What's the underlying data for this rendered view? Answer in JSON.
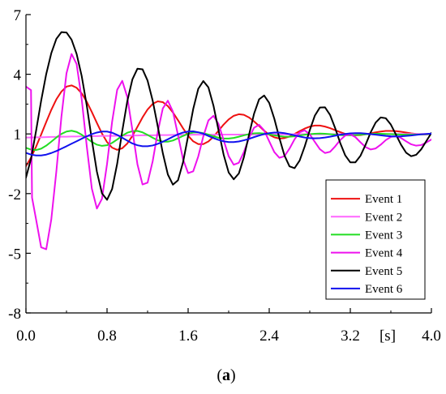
{
  "chart_data": {
    "type": "line",
    "title": "",
    "xlabel": "[s]",
    "ylabel": "",
    "xlim": [
      0,
      4.0
    ],
    "ylim": [
      -8,
      7
    ],
    "x_ticks": [
      "0.0",
      "0.8",
      "1.6",
      "2.4",
      "3.2",
      "4.0"
    ],
    "x_tick_values": [
      0,
      0.8,
      1.6,
      2.4,
      3.2,
      4.0
    ],
    "y_ticks": [
      "7",
      "4",
      "1",
      "-2",
      "-5",
      "-8"
    ],
    "y_tick_values": [
      7,
      4,
      1,
      -2,
      -5,
      -8
    ],
    "grid": false,
    "legend_position": "lower-right",
    "series": [
      {
        "name": "Event 1",
        "color": "#ee1111",
        "x": [
          0,
          0.05,
          0.1,
          0.15,
          0.2,
          0.25,
          0.3,
          0.35,
          0.4,
          0.45,
          0.5,
          0.55,
          0.6,
          0.65,
          0.7,
          0.75,
          0.8,
          0.85,
          0.9,
          0.95,
          1.0,
          1.05,
          1.1,
          1.15,
          1.2,
          1.25,
          1.3,
          1.35,
          1.4,
          1.45,
          1.5,
          1.55,
          1.6,
          1.65,
          1.7,
          1.75,
          1.8,
          1.85,
          1.9,
          1.95,
          2.0,
          2.05,
          2.1,
          2.15,
          2.2,
          2.25,
          2.3,
          2.35,
          2.4,
          2.45,
          2.5,
          2.55,
          2.6,
          2.65,
          2.7,
          2.75,
          2.8,
          2.85,
          2.9,
          2.95,
          3.0,
          3.05,
          3.1,
          3.15,
          3.2,
          3.25,
          3.3,
          3.35,
          3.4,
          3.45,
          3.5,
          3.55,
          3.6,
          3.65,
          3.7,
          3.75,
          3.8,
          3.85,
          3.9,
          3.95,
          4.0
        ],
        "y": [
          -0.62,
          -0.19,
          0.36,
          0.97,
          1.6,
          2.21,
          2.74,
          3.13,
          3.38,
          3.44,
          3.32,
          3.04,
          2.62,
          2.1,
          1.55,
          1.02,
          0.59,
          0.31,
          0.2,
          0.28,
          0.52,
          0.9,
          1.36,
          1.83,
          2.23,
          2.51,
          2.64,
          2.6,
          2.4,
          2.08,
          1.69,
          1.28,
          0.91,
          0.63,
          0.49,
          0.49,
          0.62,
          0.86,
          1.16,
          1.47,
          1.73,
          1.91,
          1.99,
          1.96,
          1.83,
          1.63,
          1.4,
          1.16,
          0.96,
          0.83,
          0.77,
          0.79,
          0.87,
          1.0,
          1.14,
          1.27,
          1.37,
          1.42,
          1.42,
          1.37,
          1.29,
          1.19,
          1.09,
          1.0,
          0.95,
          0.93,
          0.94,
          0.98,
          1.03,
          1.08,
          1.12,
          1.15,
          1.15,
          1.14,
          1.11,
          1.07,
          1.03,
          1.0,
          0.98,
          0.98,
          0.99
        ]
      },
      {
        "name": "Event 2",
        "color": "#ff66ff",
        "x": [
          0,
          0.05,
          0.1,
          0.15,
          0.2,
          0.25,
          0.3,
          0.35,
          0.4,
          0.45,
          0.5,
          0.55,
          0.6,
          0.65,
          0.7,
          0.75,
          0.8,
          0.85,
          0.9,
          0.95,
          1.0,
          1.05,
          1.1,
          1.15,
          1.2,
          1.25,
          1.3,
          1.35,
          1.4,
          1.45,
          1.5,
          1.55,
          1.6,
          1.65,
          1.7,
          1.75,
          1.8,
          1.85,
          1.9,
          1.95,
          2.0,
          2.05,
          2.1,
          2.15,
          2.2,
          2.25,
          2.3,
          2.35,
          2.4,
          2.45,
          2.5,
          2.55,
          2.6,
          2.65,
          2.7,
          2.75,
          2.8,
          2.85,
          2.9,
          2.95,
          3.0,
          3.05,
          3.1,
          3.15,
          3.2,
          3.25,
          3.3,
          3.35,
          3.4,
          3.45,
          3.5,
          3.55,
          3.6,
          3.65,
          3.7,
          3.75,
          3.8,
          3.85,
          3.9,
          3.95,
          4.0
        ],
        "y": [
          0.82,
          0.82,
          0.83,
          0.83,
          0.84,
          0.85,
          0.85,
          0.86,
          0.86,
          0.87,
          0.87,
          0.88,
          0.88,
          0.89,
          0.89,
          0.9,
          0.9,
          0.9,
          0.91,
          0.91,
          0.92,
          0.92,
          0.92,
          0.93,
          0.93,
          0.93,
          0.94,
          0.94,
          0.94,
          0.95,
          0.95,
          0.95,
          0.95,
          0.96,
          0.96,
          0.96,
          0.96,
          0.96,
          0.97,
          0.97,
          0.97,
          0.97,
          0.97,
          0.97,
          0.97,
          0.98,
          0.98,
          0.98,
          0.98,
          0.98,
          0.98,
          0.98,
          0.98,
          0.99,
          0.99,
          0.99,
          0.99,
          0.99,
          0.99,
          0.99,
          0.99,
          0.99,
          0.99,
          0.99,
          0.99,
          0.99,
          0.99,
          0.99,
          0.99,
          0.99,
          0.99,
          0.99,
          1.0,
          1.0,
          1.0,
          1.0,
          1.0,
          1.0,
          1.0,
          1.0,
          1.0
        ]
      },
      {
        "name": "Event 3",
        "color": "#22dd22",
        "x": [
          0,
          0.05,
          0.1,
          0.15,
          0.2,
          0.25,
          0.3,
          0.35,
          0.4,
          0.45,
          0.5,
          0.55,
          0.6,
          0.65,
          0.7,
          0.75,
          0.8,
          0.85,
          0.9,
          0.95,
          1.0,
          1.05,
          1.1,
          1.15,
          1.2,
          1.25,
          1.3,
          1.35,
          1.4,
          1.45,
          1.5,
          1.55,
          1.6,
          1.65,
          1.7,
          1.75,
          1.8,
          1.85,
          1.9,
          1.95,
          2.0,
          2.05,
          2.1,
          2.15,
          2.2,
          2.25,
          2.3,
          2.35,
          2.4,
          2.45,
          2.5,
          2.55,
          2.6,
          2.65,
          2.7,
          2.75,
          2.8,
          2.85,
          2.9,
          2.95,
          3.0,
          3.05,
          3.1,
          3.15,
          3.2,
          3.25,
          3.3,
          3.35,
          3.4,
          3.45,
          3.5,
          3.55,
          3.6,
          3.65,
          3.7,
          3.75,
          3.8,
          3.85,
          3.9,
          3.95,
          4.0
        ],
        "y": [
          0.3,
          0.21,
          0.19,
          0.26,
          0.41,
          0.61,
          0.82,
          1.0,
          1.12,
          1.16,
          1.1,
          0.96,
          0.78,
          0.6,
          0.46,
          0.4,
          0.43,
          0.55,
          0.72,
          0.91,
          1.06,
          1.14,
          1.15,
          1.08,
          0.95,
          0.81,
          0.68,
          0.61,
          0.61,
          0.67,
          0.78,
          0.9,
          1.01,
          1.07,
          1.08,
          1.04,
          0.97,
          0.88,
          0.81,
          0.77,
          0.77,
          0.8,
          0.86,
          0.93,
          0.99,
          1.03,
          1.04,
          1.02,
          0.98,
          0.93,
          0.89,
          0.86,
          0.86,
          0.88,
          0.92,
          0.96,
          0.99,
          1.01,
          1.02,
          1.01,
          0.99,
          0.96,
          0.94,
          0.93,
          0.93,
          0.94,
          0.96,
          0.98,
          1.0,
          1.01,
          1.01,
          1.0,
          0.99,
          0.98,
          0.97,
          0.96,
          0.96,
          0.97,
          0.98,
          0.99,
          1.0
        ]
      },
      {
        "name": "Event 4",
        "color": "#ee11ee",
        "x": [
          0,
          0.05,
          0.06,
          0.1,
          0.15,
          0.2,
          0.25,
          0.3,
          0.35,
          0.4,
          0.45,
          0.5,
          0.55,
          0.6,
          0.65,
          0.7,
          0.75,
          0.8,
          0.85,
          0.9,
          0.95,
          1.0,
          1.05,
          1.1,
          1.15,
          1.2,
          1.25,
          1.3,
          1.35,
          1.4,
          1.45,
          1.5,
          1.55,
          1.6,
          1.65,
          1.7,
          1.75,
          1.8,
          1.85,
          1.9,
          1.95,
          2.0,
          2.05,
          2.1,
          2.15,
          2.2,
          2.25,
          2.3,
          2.35,
          2.4,
          2.45,
          2.5,
          2.55,
          2.6,
          2.65,
          2.7,
          2.75,
          2.8,
          2.85,
          2.9,
          2.95,
          3.0,
          3.05,
          3.1,
          3.15,
          3.2,
          3.25,
          3.3,
          3.35,
          3.4,
          3.45,
          3.5,
          3.55,
          3.6,
          3.65,
          3.7,
          3.75,
          3.8,
          3.85,
          3.9,
          3.95,
          4.0
        ],
        "y": [
          3.38,
          3.2,
          -2.2,
          -3.3,
          -4.7,
          -4.8,
          -3.3,
          -0.88,
          1.87,
          4.05,
          5.02,
          4.51,
          2.75,
          0.38,
          -1.75,
          -2.75,
          -2.26,
          -0.51,
          1.61,
          3.22,
          3.67,
          2.85,
          1.2,
          -0.53,
          -1.54,
          -1.45,
          -0.38,
          1.09,
          2.28,
          2.67,
          2.12,
          0.94,
          -0.28,
          -0.97,
          -0.88,
          -0.13,
          0.88,
          1.68,
          1.91,
          1.5,
          0.69,
          -0.12,
          -0.55,
          -0.45,
          0.09,
          0.79,
          1.31,
          1.46,
          1.18,
          0.63,
          0.09,
          -0.2,
          -0.12,
          0.26,
          0.73,
          1.08,
          1.18,
          0.98,
          0.6,
          0.23,
          0.04,
          0.1,
          0.37,
          0.69,
          0.92,
          0.98,
          0.84,
          0.58,
          0.34,
          0.22,
          0.27,
          0.46,
          0.69,
          0.85,
          0.89,
          0.8,
          0.63,
          0.48,
          0.41,
          0.44,
          0.57,
          0.72
        ]
      },
      {
        "name": "Event 5",
        "color": "#000000",
        "x": [
          0,
          0.05,
          0.1,
          0.15,
          0.2,
          0.25,
          0.3,
          0.35,
          0.4,
          0.45,
          0.5,
          0.55,
          0.6,
          0.65,
          0.7,
          0.75,
          0.8,
          0.85,
          0.9,
          0.95,
          1.0,
          1.05,
          1.1,
          1.15,
          1.2,
          1.25,
          1.3,
          1.35,
          1.4,
          1.45,
          1.5,
          1.55,
          1.6,
          1.65,
          1.7,
          1.75,
          1.8,
          1.85,
          1.9,
          1.95,
          2.0,
          2.05,
          2.1,
          2.15,
          2.2,
          2.25,
          2.3,
          2.35,
          2.4,
          2.45,
          2.5,
          2.55,
          2.6,
          2.65,
          2.7,
          2.75,
          2.8,
          2.85,
          2.9,
          2.95,
          3.0,
          3.05,
          3.1,
          3.15,
          3.2,
          3.25,
          3.3,
          3.35,
          3.4,
          3.45,
          3.5,
          3.55,
          3.6,
          3.65,
          3.7,
          3.75,
          3.8,
          3.85,
          3.9,
          3.95,
          4.0
        ],
        "y": [
          -1.2,
          -0.25,
          1.16,
          2.67,
          4.01,
          5.06,
          5.78,
          6.12,
          6.1,
          5.74,
          5.02,
          3.91,
          2.43,
          0.7,
          -0.9,
          -1.99,
          -2.31,
          -1.77,
          -0.5,
          1.14,
          2.65,
          3.74,
          4.28,
          4.25,
          3.68,
          2.68,
          1.39,
          0.04,
          -1.04,
          -1.55,
          -1.33,
          -0.42,
          0.9,
          2.25,
          3.27,
          3.66,
          3.34,
          2.42,
          1.18,
          -0.04,
          -0.94,
          -1.28,
          -0.99,
          -0.17,
          0.94,
          2.01,
          2.74,
          2.93,
          2.56,
          1.77,
          0.8,
          -0.08,
          -0.63,
          -0.72,
          -0.34,
          0.37,
          1.19,
          1.92,
          2.33,
          2.34,
          1.96,
          1.3,
          0.55,
          -0.08,
          -0.43,
          -0.43,
          -0.1,
          0.45,
          1.07,
          1.57,
          1.83,
          1.79,
          1.47,
          0.97,
          0.46,
          0.06,
          -0.12,
          -0.05,
          0.23,
          0.64,
          1.05
        ]
      },
      {
        "name": "Event 6",
        "color": "#1111ee",
        "x": [
          0,
          0.05,
          0.1,
          0.15,
          0.2,
          0.25,
          0.3,
          0.35,
          0.4,
          0.45,
          0.5,
          0.55,
          0.6,
          0.65,
          0.7,
          0.75,
          0.8,
          0.85,
          0.9,
          0.95,
          1.0,
          1.05,
          1.1,
          1.15,
          1.2,
          1.25,
          1.3,
          1.35,
          1.4,
          1.45,
          1.5,
          1.55,
          1.6,
          1.65,
          1.7,
          1.75,
          1.8,
          1.85,
          1.9,
          1.95,
          2.0,
          2.05,
          2.1,
          2.15,
          2.2,
          2.25,
          2.3,
          2.35,
          2.4,
          2.45,
          2.5,
          2.55,
          2.6,
          2.65,
          2.7,
          2.75,
          2.8,
          2.85,
          2.9,
          2.95,
          3.0,
          3.05,
          3.1,
          3.15,
          3.2,
          3.25,
          3.3,
          3.35,
          3.4,
          3.45,
          3.5,
          3.55,
          3.6,
          3.65,
          3.7,
          3.75,
          3.8,
          3.85,
          3.9,
          3.95,
          4.0
        ],
        "y": [
          0.05,
          -0.04,
          -0.08,
          -0.08,
          -0.04,
          0.04,
          0.14,
          0.26,
          0.38,
          0.51,
          0.63,
          0.76,
          0.88,
          0.99,
          1.07,
          1.12,
          1.12,
          1.06,
          0.95,
          0.81,
          0.66,
          0.52,
          0.43,
          0.38,
          0.38,
          0.42,
          0.5,
          0.61,
          0.73,
          0.86,
          0.98,
          1.07,
          1.12,
          1.13,
          1.08,
          1.01,
          0.9,
          0.79,
          0.7,
          0.63,
          0.59,
          0.59,
          0.62,
          0.68,
          0.75,
          0.84,
          0.92,
          0.99,
          1.04,
          1.07,
          1.07,
          1.04,
          0.99,
          0.93,
          0.87,
          0.82,
          0.79,
          0.78,
          0.79,
          0.82,
          0.86,
          0.91,
          0.96,
          1.0,
          1.03,
          1.04,
          1.04,
          1.02,
          0.99,
          0.96,
          0.93,
          0.9,
          0.88,
          0.87,
          0.88,
          0.9,
          0.92,
          0.95,
          0.98,
          1.0,
          1.02
        ]
      }
    ]
  },
  "caption": {
    "open": "(",
    "letter": "a",
    "close": ")"
  }
}
